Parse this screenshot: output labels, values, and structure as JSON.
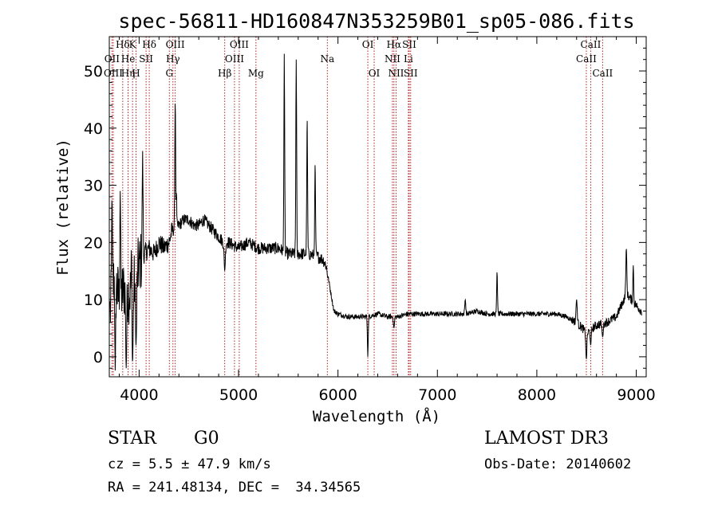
{
  "chart_data": {
    "type": "line",
    "title": "spec-56811-HD160847N353259B01_sp05-086.fits",
    "xlabel": "Wavelength (Å)",
    "ylabel": "Flux (relative)",
    "xlim": [
      3700,
      9100
    ],
    "ylim": [
      -3.5,
      56
    ],
    "x_ticks": [
      4000,
      5000,
      6000,
      7000,
      8000,
      9000
    ],
    "y_ticks": [
      0,
      10,
      20,
      30,
      40,
      50
    ],
    "grid": false,
    "legend": "none",
    "line_color": "#000000",
    "marker_color": "#b22222",
    "spectral_lines": [
      {
        "name": "Hδ",
        "wavelength": 3835,
        "row": 0
      },
      {
        "name": "OII",
        "wavelength": 3727,
        "row": 1
      },
      {
        "name": "OIII",
        "wavelength": 3740,
        "row": 2
      },
      {
        "name": "K",
        "wavelength": 3934,
        "row": 0
      },
      {
        "name": "He",
        "wavelength": 3889,
        "row": 1
      },
      {
        "name": "Hη",
        "wavelength": 3889,
        "row": 2
      },
      {
        "name": "SII",
        "wavelength": 4070,
        "row": 1
      },
      {
        "name": "H",
        "wavelength": 3969,
        "row": 2
      },
      {
        "name": "Hδ",
        "wavelength": 4102,
        "row": 0
      },
      {
        "name": "OIII",
        "wavelength": 4363,
        "row": 0
      },
      {
        "name": "Hγ",
        "wavelength": 4340,
        "row": 1
      },
      {
        "name": "G",
        "wavelength": 4304,
        "row": 2
      },
      {
        "name": "OIII",
        "wavelength": 5007,
        "row": 0
      },
      {
        "name": "OIII",
        "wavelength": 4959,
        "row": 1
      },
      {
        "name": "Hβ",
        "wavelength": 4861,
        "row": 2
      },
      {
        "name": "Mg",
        "wavelength": 5175,
        "row": 2
      },
      {
        "name": "Na",
        "wavelength": 5893,
        "row": 1
      },
      {
        "name": "OI",
        "wavelength": 6300,
        "row": 0
      },
      {
        "name": "OI",
        "wavelength": 6364,
        "row": 2
      },
      {
        "name": "Hα",
        "wavelength": 6563,
        "row": 0
      },
      {
        "name": "SII",
        "wavelength": 6717,
        "row": 0
      },
      {
        "name": "NII",
        "wavelength": 6548,
        "row": 1
      },
      {
        "name": "Li",
        "wavelength": 6708,
        "row": 1
      },
      {
        "name": "NII",
        "wavelength": 6584,
        "row": 2
      },
      {
        "name": "SII",
        "wavelength": 6731,
        "row": 2
      },
      {
        "name": "CaII",
        "wavelength": 8542,
        "row": 0
      },
      {
        "name": "CaII",
        "wavelength": 8498,
        "row": 1
      },
      {
        "name": "CaII",
        "wavelength": 8662,
        "row": 2
      }
    ],
    "spectrum_anchors": [
      [
        3710,
        8
      ],
      [
        3750,
        14
      ],
      [
        3800,
        10
      ],
      [
        3850,
        12
      ],
      [
        3900,
        11
      ],
      [
        3950,
        13
      ],
      [
        4000,
        16
      ],
      [
        4050,
        18
      ],
      [
        4100,
        19
      ],
      [
        4150,
        18
      ],
      [
        4200,
        20
      ],
      [
        4250,
        19
      ],
      [
        4300,
        20
      ],
      [
        4330,
        22
      ],
      [
        4400,
        23
      ],
      [
        4450,
        24
      ],
      [
        4500,
        24
      ],
      [
        4550,
        23
      ],
      [
        4600,
        23
      ],
      [
        4650,
        24
      ],
      [
        4700,
        23
      ],
      [
        4750,
        22
      ],
      [
        4800,
        21
      ],
      [
        4850,
        20
      ],
      [
        4900,
        20
      ],
      [
        5000,
        19
      ],
      [
        5100,
        20
      ],
      [
        5200,
        19
      ],
      [
        5300,
        19
      ],
      [
        5400,
        19
      ],
      [
        5500,
        18
      ],
      [
        5600,
        18
      ],
      [
        5700,
        18
      ],
      [
        5800,
        17.5
      ],
      [
        5850,
        17
      ],
      [
        5880,
        16
      ],
      [
        5910,
        13
      ],
      [
        5940,
        10
      ],
      [
        5960,
        8
      ],
      [
        6000,
        7.5
      ],
      [
        6100,
        7
      ],
      [
        6200,
        7
      ],
      [
        6300,
        7
      ],
      [
        6400,
        7.5
      ],
      [
        6500,
        7
      ],
      [
        6600,
        7
      ],
      [
        6700,
        7.5
      ],
      [
        6800,
        7.5
      ],
      [
        6900,
        7.5
      ],
      [
        7000,
        7.5
      ],
      [
        7100,
        7.5
      ],
      [
        7200,
        7.5
      ],
      [
        7300,
        7.5
      ],
      [
        7400,
        8
      ],
      [
        7500,
        7.5
      ],
      [
        7600,
        7.5
      ],
      [
        7700,
        7.5
      ],
      [
        7800,
        7.5
      ],
      [
        7900,
        7.5
      ],
      [
        8000,
        7.5
      ],
      [
        8100,
        7.5
      ],
      [
        8200,
        7.5
      ],
      [
        8300,
        7
      ],
      [
        8400,
        6
      ],
      [
        8460,
        5
      ],
      [
        8500,
        4
      ],
      [
        8560,
        5
      ],
      [
        8600,
        5.5
      ],
      [
        8700,
        6
      ],
      [
        8800,
        7
      ],
      [
        8850,
        9
      ],
      [
        8900,
        11
      ],
      [
        8950,
        10
      ],
      [
        9000,
        9
      ],
      [
        9050,
        8
      ]
    ],
    "spectrum_features": [
      {
        "wavelength": 3727,
        "flux": 28,
        "width": 4
      },
      {
        "wavelength": 3760,
        "flux": -3,
        "width": 4
      },
      {
        "wavelength": 3810,
        "flux": 29,
        "width": 4
      },
      {
        "wavelength": 3870,
        "flux": -2,
        "width": 5
      },
      {
        "wavelength": 3925,
        "flux": 24,
        "width": 4
      },
      {
        "wavelength": 3934,
        "flux": -1,
        "width": 6
      },
      {
        "wavelength": 3969,
        "flux": 2,
        "width": 6
      },
      {
        "wavelength": 4035,
        "flux": 36,
        "width": 4
      },
      {
        "wavelength": 4363,
        "flux": 45,
        "width": 4
      },
      {
        "wavelength": 4375,
        "flux": 29,
        "width": 3
      },
      {
        "wavelength": 4861,
        "flux": 15,
        "width": 6
      },
      {
        "wavelength": 5460,
        "flux": 53,
        "width": 4
      },
      {
        "wavelength": 5580,
        "flux": 52,
        "width": 4
      },
      {
        "wavelength": 5690,
        "flux": 42,
        "width": 4
      },
      {
        "wavelength": 5770,
        "flux": 34,
        "width": 4
      },
      {
        "wavelength": 6300,
        "flux": 0,
        "width": 4
      },
      {
        "wavelength": 6563,
        "flux": 5,
        "width": 5
      },
      {
        "wavelength": 7280,
        "flux": 10,
        "width": 5
      },
      {
        "wavelength": 7600,
        "flux": 15,
        "width": 4
      },
      {
        "wavelength": 8400,
        "flux": 10,
        "width": 6
      },
      {
        "wavelength": 8498,
        "flux": -0.5,
        "width": 5
      },
      {
        "wavelength": 8542,
        "flux": 2,
        "width": 5
      },
      {
        "wavelength": 8662,
        "flux": 3.5,
        "width": 6
      },
      {
        "wavelength": 8900,
        "flux": 19,
        "width": 5
      },
      {
        "wavelength": 8970,
        "flux": 16,
        "width": 4
      }
    ]
  },
  "info": {
    "object_class": "STAR",
    "subclass": "G0",
    "cz": "cz = 5.5 ± 47.9 km/s",
    "coords": "RA = 241.48134, DEC =  34.34565",
    "survey": "LAMOST DR3",
    "obs_date": "Obs-Date: 20140602"
  }
}
